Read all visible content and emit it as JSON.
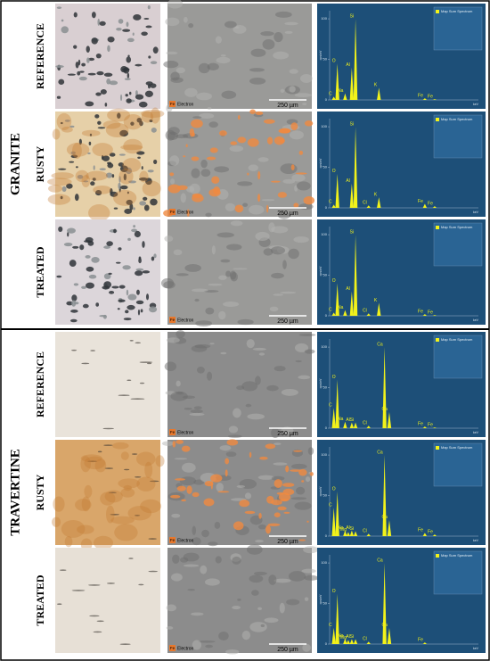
{
  "spectrum_axis": {
    "xlim": [
      0,
      10
    ],
    "ylim": [
      0,
      110
    ],
    "yticks": [
      0,
      50,
      100
    ],
    "y_label": "cps/eV",
    "x_label": "keV"
  },
  "groups": [
    {
      "label": "GRANITE",
      "rows": [
        {
          "label": "REFERENCE",
          "sem": {
            "element": "Fe",
            "detector": "Electron",
            "scale": "250 µm"
          },
          "spectrum": {
            "legend": "Map Sum Spectrum",
            "peaks": [
              {
                "element": "C",
                "kev": 0.28,
                "counts": 4
              },
              {
                "element": "O",
                "kev": 0.52,
                "counts": 45
              },
              {
                "element": "Na",
                "kev": 1.04,
                "counts": 8
              },
              {
                "element": "Al",
                "kev": 1.49,
                "counts": 40
              },
              {
                "element": "Si",
                "kev": 1.74,
                "counts": 100
              },
              {
                "element": "K",
                "kev": 3.31,
                "counts": 15
              },
              {
                "element": "Fe",
                "kev": 6.4,
                "counts": 2
              },
              {
                "element": "Fe",
                "kev": 7.06,
                "counts": 1
              }
            ]
          }
        },
        {
          "label": "RUSTY",
          "sem": {
            "element": "Fe",
            "detector": "Electron",
            "scale": "250 µm"
          },
          "spectrum": {
            "legend": "Map Sum Spectrum",
            "peaks": [
              {
                "element": "C",
                "kev": 0.28,
                "counts": 4
              },
              {
                "element": "O",
                "kev": 0.52,
                "counts": 42
              },
              {
                "element": "Al",
                "kev": 1.49,
                "counts": 30
              },
              {
                "element": "Si",
                "kev": 1.74,
                "counts": 100
              },
              {
                "element": "Cl",
                "kev": 2.62,
                "counts": 3
              },
              {
                "element": "K",
                "kev": 3.31,
                "counts": 13
              },
              {
                "element": "Fe",
                "kev": 6.4,
                "counts": 5
              },
              {
                "element": "Fe",
                "kev": 7.06,
                "counts": 2
              }
            ]
          }
        },
        {
          "label": "TREATED",
          "sem": {
            "element": "Fe",
            "detector": "Electron",
            "scale": "250 µm"
          },
          "spectrum": {
            "legend": "Map Sum Spectrum",
            "peaks": [
              {
                "element": "C",
                "kev": 0.28,
                "counts": 4
              },
              {
                "element": "Na",
                "kev": 1.04,
                "counts": 7
              },
              {
                "element": "O",
                "kev": 0.52,
                "counts": 40
              },
              {
                "element": "Al",
                "kev": 1.49,
                "counts": 30
              },
              {
                "element": "Si",
                "kev": 1.74,
                "counts": 100
              },
              {
                "element": "Cl",
                "kev": 2.62,
                "counts": 3
              },
              {
                "element": "K",
                "kev": 3.31,
                "counts": 16
              },
              {
                "element": "Fe",
                "kev": 6.4,
                "counts": 2
              },
              {
                "element": "Fe",
                "kev": 7.06,
                "counts": 1
              }
            ]
          }
        }
      ]
    },
    {
      "label": "TRAVERTINE",
      "rows": [
        {
          "label": "REFERENCE",
          "sem": {
            "element": "Fe",
            "detector": "Electron",
            "scale": "250 µm"
          },
          "spectrum": {
            "legend": "Map Sum Spectrum",
            "peaks": [
              {
                "element": "C",
                "kev": 0.28,
                "counts": 25
              },
              {
                "element": "O",
                "kev": 0.52,
                "counts": 60
              },
              {
                "element": "Na",
                "kev": 1.04,
                "counts": 8
              },
              {
                "element": "Al",
                "kev": 1.49,
                "counts": 7
              },
              {
                "element": "Si",
                "kev": 1.74,
                "counts": 7
              },
              {
                "element": "Cl",
                "kev": 2.62,
                "counts": 3
              },
              {
                "element": "Ca",
                "kev": 3.69,
                "counts": 100
              },
              {
                "element": "Ca",
                "kev": 4.01,
                "counts": 20
              },
              {
                "element": "Fe",
                "kev": 6.4,
                "counts": 2
              },
              {
                "element": "Fe",
                "kev": 7.06,
                "counts": 1
              }
            ]
          }
        },
        {
          "label": "RUSTY",
          "sem": {
            "element": "Fe",
            "detector": "Electron",
            "scale": "250 µm"
          },
          "spectrum": {
            "legend": "Map Sum Spectrum",
            "peaks": [
              {
                "element": "C",
                "kev": 0.28,
                "counts": 35
              },
              {
                "element": "O",
                "kev": 0.52,
                "counts": 55
              },
              {
                "element": "Na",
                "kev": 1.04,
                "counts": 7
              },
              {
                "element": "Mg",
                "kev": 1.25,
                "counts": 5
              },
              {
                "element": "Al",
                "kev": 1.49,
                "counts": 7
              },
              {
                "element": "Si",
                "kev": 1.74,
                "counts": 6
              },
              {
                "element": "Cl",
                "kev": 2.62,
                "counts": 3
              },
              {
                "element": "Ca",
                "kev": 3.69,
                "counts": 100
              },
              {
                "element": "Ca",
                "kev": 4.01,
                "counts": 20
              },
              {
                "element": "Fe",
                "kev": 6.4,
                "counts": 4
              },
              {
                "element": "Fe",
                "kev": 7.06,
                "counts": 2
              }
            ]
          }
        },
        {
          "label": "TREATED",
          "sem": {
            "element": "Fe",
            "detector": "Electron",
            "scale": "250 µm"
          },
          "spectrum": {
            "legend": "Map Sum Spectrum",
            "peaks": [
              {
                "element": "C",
                "kev": 0.28,
                "counts": 20
              },
              {
                "element": "O",
                "kev": 0.52,
                "counts": 62
              },
              {
                "element": "Na",
                "kev": 1.04,
                "counts": 7
              },
              {
                "element": "Mg",
                "kev": 1.25,
                "counts": 5
              },
              {
                "element": "Al",
                "kev": 1.49,
                "counts": 6
              },
              {
                "element": "Si",
                "kev": 1.74,
                "counts": 6
              },
              {
                "element": "Cl",
                "kev": 2.62,
                "counts": 3
              },
              {
                "element": "Ca",
                "kev": 3.69,
                "counts": 100
              },
              {
                "element": "Ca",
                "kev": 4.01,
                "counts": 20
              },
              {
                "element": "Fe",
                "kev": 6.4,
                "counts": 2
              }
            ]
          }
        }
      ]
    }
  ]
}
